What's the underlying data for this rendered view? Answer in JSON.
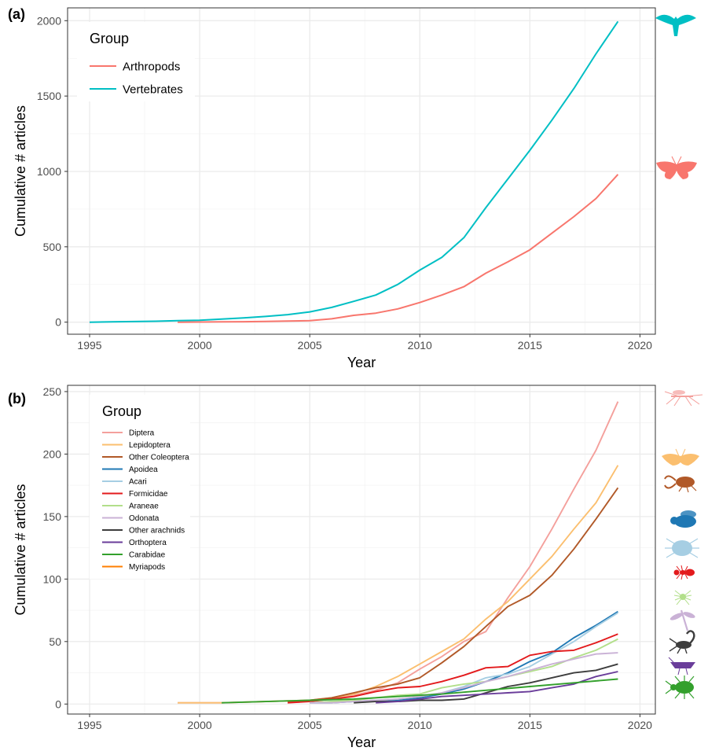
{
  "colors": {
    "grid_major": "#ebebeb",
    "grid_minor": "#f4f4f4",
    "axis_text": "#4d4d4d",
    "panel_border": "#333333"
  },
  "chart_data": [
    {
      "type": "line",
      "panel_label": "(a)",
      "xlabel": "Year",
      "ylabel": "Cumulative # articles",
      "xlim": [
        1994,
        2020.7
      ],
      "ylim": [
        -80,
        2085
      ],
      "xticks": [
        1995,
        2000,
        2005,
        2010,
        2015,
        2020
      ],
      "yticks": [
        0,
        500,
        1000,
        1500,
        2000
      ],
      "grid": true,
      "legend": {
        "title": "Group",
        "position": "top-left"
      },
      "series": [
        {
          "name": "Arthropods",
          "color": "#F8766D",
          "icon": "butterfly-icon",
          "x": [
            1999,
            2000,
            2001,
            2002,
            2003,
            2004,
            2005,
            2006,
            2007,
            2008,
            2009,
            2010,
            2011,
            2012,
            2013,
            2014,
            2015,
            2016,
            2017,
            2018,
            2019
          ],
          "y": [
            0,
            1,
            2,
            3,
            5,
            7,
            10,
            22,
            45,
            60,
            88,
            130,
            180,
            235,
            325,
            400,
            480,
            590,
            700,
            820,
            980
          ]
        },
        {
          "name": "Vertebrates",
          "color": "#00BFC4",
          "icon": "bird-icon",
          "x": [
            1995,
            1996,
            1997,
            1998,
            1999,
            2000,
            2001,
            2002,
            2003,
            2004,
            2005,
            2006,
            2007,
            2008,
            2009,
            2010,
            2011,
            2012,
            2013,
            2014,
            2015,
            2016,
            2017,
            2018,
            2019
          ],
          "y": [
            0,
            2,
            4,
            6,
            10,
            13,
            20,
            28,
            38,
            50,
            68,
            98,
            138,
            180,
            250,
            345,
            430,
            560,
            760,
            950,
            1140,
            1340,
            1550,
            1780,
            1995
          ]
        }
      ]
    },
    {
      "type": "line",
      "panel_label": "(b)",
      "xlabel": "Year",
      "ylabel": "Cumulative # articles",
      "xlim": [
        1994,
        2020.7
      ],
      "ylim": [
        -8,
        255
      ],
      "xticks": [
        1995,
        2000,
        2005,
        2010,
        2015,
        2020
      ],
      "yticks": [
        0,
        50,
        100,
        150,
        200,
        250
      ],
      "grid": true,
      "legend": {
        "title": "Group",
        "position": "top-left"
      },
      "series": [
        {
          "name": "Diptera",
          "color": "#F4A09C",
          "icon": "mosquito-icon",
          "x": [
            1999,
            2001,
            2003,
            2005,
            2006,
            2007,
            2008,
            2009,
            2010,
            2011,
            2012,
            2013,
            2014,
            2015,
            2016,
            2017,
            2018,
            2019
          ],
          "y": [
            1,
            1,
            2,
            3,
            4,
            7,
            11,
            17,
            28,
            38,
            50,
            58,
            85,
            110,
            140,
            172,
            203,
            242
          ]
        },
        {
          "name": "Lepidoptera",
          "color": "#FBBF6F",
          "icon": "moth-icon",
          "x": [
            1999,
            2001,
            2003,
            2005,
            2006,
            2007,
            2008,
            2009,
            2010,
            2011,
            2012,
            2013,
            2014,
            2015,
            2016,
            2017,
            2018,
            2019
          ],
          "y": [
            1,
            1,
            2,
            3,
            5,
            8,
            14,
            22,
            32,
            42,
            52,
            68,
            82,
            100,
            118,
            140,
            161,
            191
          ]
        },
        {
          "name": "Other Coleoptera",
          "color": "#B15928",
          "icon": "stag-beetle-icon",
          "x": [
            2004,
            2005,
            2006,
            2007,
            2008,
            2009,
            2010,
            2011,
            2012,
            2013,
            2014,
            2015,
            2016,
            2017,
            2018,
            2019
          ],
          "y": [
            2,
            3,
            5,
            9,
            13,
            16,
            21,
            33,
            46,
            62,
            78,
            87,
            103,
            124,
            148,
            173
          ]
        },
        {
          "name": "Apoidea",
          "color": "#1F78B4",
          "icon": "bee-icon",
          "x": [
            2005,
            2006,
            2007,
            2008,
            2009,
            2010,
            2011,
            2012,
            2013,
            2014,
            2015,
            2016,
            2017,
            2018,
            2019
          ],
          "y": [
            1,
            1,
            2,
            3,
            3,
            5,
            8,
            12,
            18,
            25,
            34,
            41,
            53,
            63,
            74
          ]
        },
        {
          "name": "Acari",
          "color": "#A6CEE3",
          "icon": "tick-icon",
          "x": [
            2005,
            2006,
            2007,
            2008,
            2009,
            2010,
            2011,
            2012,
            2013,
            2014,
            2015,
            2016,
            2017,
            2018,
            2019
          ],
          "y": [
            1,
            2,
            2,
            3,
            4,
            6,
            9,
            14,
            21,
            24,
            30,
            40,
            50,
            62,
            73
          ]
        },
        {
          "name": "Formicidae",
          "color": "#E31A1C",
          "icon": "ant-icon",
          "x": [
            2004,
            2005,
            2006,
            2007,
            2008,
            2009,
            2010,
            2011,
            2012,
            2013,
            2014,
            2015,
            2016,
            2017,
            2018,
            2019
          ],
          "y": [
            1,
            2,
            4,
            6,
            10,
            13,
            14,
            18,
            23,
            29,
            30,
            39,
            42,
            43,
            49,
            56
          ]
        },
        {
          "name": "Araneae",
          "color": "#B2DF8A",
          "icon": "spider-icon",
          "x": [
            2005,
            2006,
            2007,
            2008,
            2009,
            2010,
            2011,
            2012,
            2013,
            2014,
            2015,
            2016,
            2017,
            2018,
            2019
          ],
          "y": [
            1,
            2,
            3,
            5,
            7,
            8,
            13,
            16,
            18,
            22,
            26,
            30,
            37,
            43,
            52
          ]
        },
        {
          "name": "Odonata",
          "color": "#CAB2D6",
          "icon": "dragonfly-icon",
          "x": [
            2005,
            2006,
            2007,
            2008,
            2009,
            2010,
            2011,
            2012,
            2013,
            2014,
            2015,
            2016,
            2017,
            2018,
            2019
          ],
          "y": [
            1,
            1,
            2,
            3,
            4,
            6,
            9,
            13,
            18,
            22,
            27,
            32,
            36,
            40,
            41
          ]
        },
        {
          "name": "Other arachnids",
          "color": "#3D3D3D",
          "icon": "scorpion-icon",
          "x": [
            2007,
            2008,
            2009,
            2010,
            2011,
            2012,
            2013,
            2014,
            2015,
            2016,
            2017,
            2018,
            2019
          ],
          "y": [
            1,
            2,
            2,
            3,
            3,
            4,
            9,
            14,
            17,
            21,
            25,
            27,
            32
          ]
        },
        {
          "name": "Orthoptera",
          "color": "#6A3D9A",
          "icon": "grasshopper-icon",
          "x": [
            2008,
            2009,
            2010,
            2011,
            2012,
            2013,
            2014,
            2015,
            2016,
            2017,
            2018,
            2019
          ],
          "y": [
            1,
            2,
            4,
            6,
            7,
            8,
            9,
            10,
            13,
            16,
            22,
            26
          ]
        },
        {
          "name": "Carabidae",
          "color": "#33A02C",
          "icon": "ground-beetle-icon",
          "x": [
            2001,
            2003,
            2005,
            2007,
            2009,
            2011,
            2013,
            2015,
            2017,
            2019
          ],
          "y": [
            1,
            2,
            3,
            4,
            6,
            8,
            11,
            14,
            17,
            20
          ]
        },
        {
          "name": "Myriapods",
          "color": "#FF7F00",
          "icon": "centipede-icon",
          "x": [],
          "y": []
        }
      ]
    }
  ]
}
